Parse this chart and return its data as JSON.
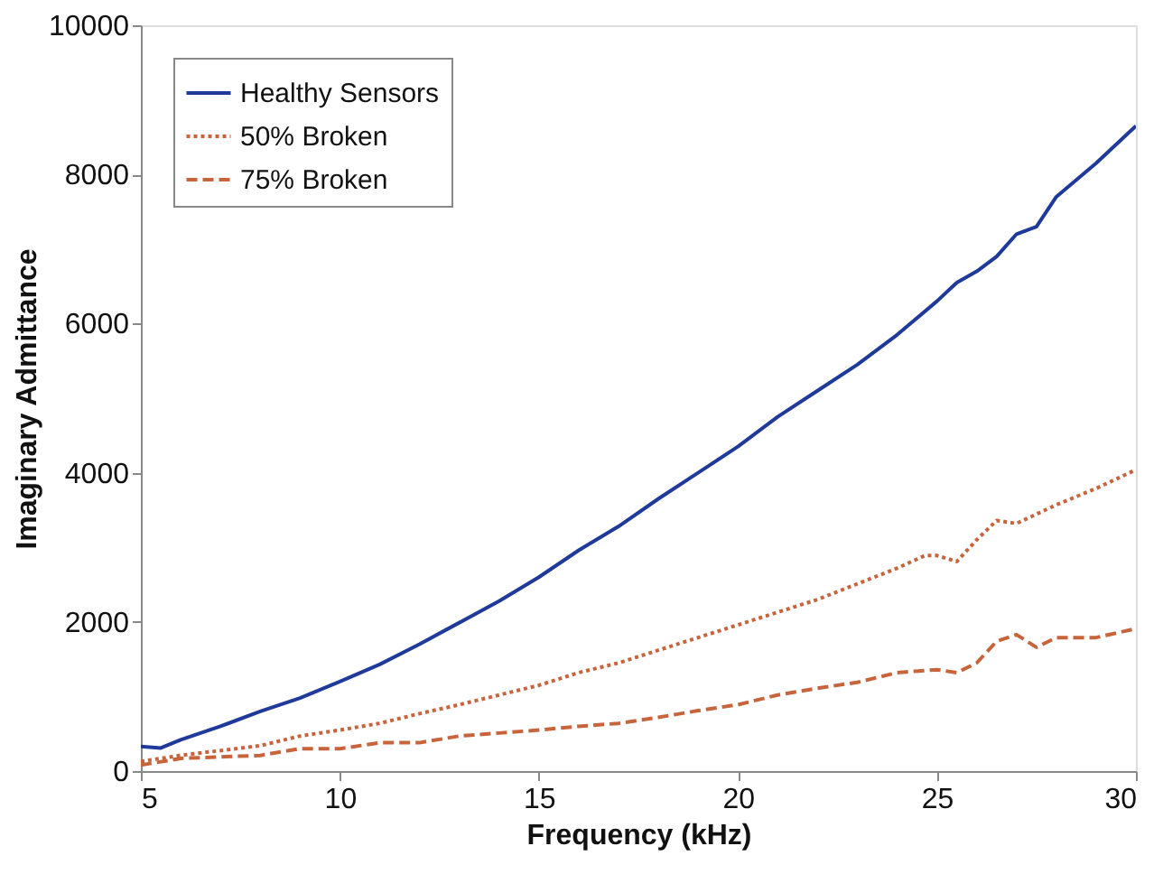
{
  "chart_data": {
    "type": "line",
    "xlabel": "Frequency (kHz)",
    "ylabel": "Imaginary Admittance",
    "xlim": [
      5,
      30
    ],
    "xticks": [
      5,
      10,
      15,
      20,
      25,
      30
    ],
    "ylim": [
      0,
      10000
    ],
    "yticks": [
      0,
      2000,
      4000,
      6000,
      8000,
      10000
    ],
    "grid": false,
    "legend": "top left",
    "series": [
      {
        "name": "Healthy Sensors",
        "color": "#1f3a9a",
        "line_style": "solid",
        "x": [
          5,
          5.5,
          6,
          7,
          8,
          9,
          10,
          11,
          12,
          13,
          14,
          15,
          16,
          17,
          18,
          19,
          20,
          21,
          22,
          23,
          24,
          25,
          25.5,
          26,
          26.5,
          27,
          27.5,
          28,
          29,
          30
        ],
        "values": [
          330,
          310,
          420,
          600,
          800,
          980,
          1200,
          1430,
          1700,
          1990,
          2280,
          2600,
          2960,
          3280,
          3650,
          4000,
          4350,
          4750,
          5100,
          5450,
          5850,
          6300,
          6550,
          6700,
          6900,
          7200,
          7300,
          7700,
          8150,
          8650
        ]
      },
      {
        "name": "50% Broken",
        "color": "#c8643c",
        "line_style": "dotted",
        "x": [
          5,
          6,
          8,
          9,
          10,
          11,
          12,
          13,
          14,
          15,
          16,
          17,
          18,
          19,
          20,
          21,
          22,
          23,
          24,
          24.7,
          25,
          25.5,
          26,
          26.5,
          27,
          28,
          29,
          30
        ],
        "values": [
          130,
          210,
          340,
          470,
          550,
          640,
          770,
          890,
          1020,
          1150,
          1320,
          1450,
          1620,
          1790,
          1960,
          2130,
          2300,
          2510,
          2720,
          2890,
          2890,
          2810,
          3100,
          3360,
          3320,
          3570,
          3790,
          4040
        ]
      },
      {
        "name": "75% Broken",
        "color": "#c8643c",
        "line_style": "dashed",
        "x": [
          5,
          6,
          8,
          9,
          10,
          11,
          12,
          13,
          14,
          15,
          16,
          17,
          18,
          19,
          20,
          21,
          22,
          23,
          24,
          25,
          25.5,
          26,
          26.5,
          27,
          27.5,
          28,
          29,
          30
        ],
        "values": [
          80,
          170,
          210,
          300,
          300,
          380,
          380,
          470,
          510,
          550,
          600,
          640,
          720,
          810,
          890,
          1020,
          1110,
          1190,
          1320,
          1360,
          1320,
          1450,
          1740,
          1830,
          1660,
          1790,
          1790,
          1910
        ]
      }
    ]
  }
}
